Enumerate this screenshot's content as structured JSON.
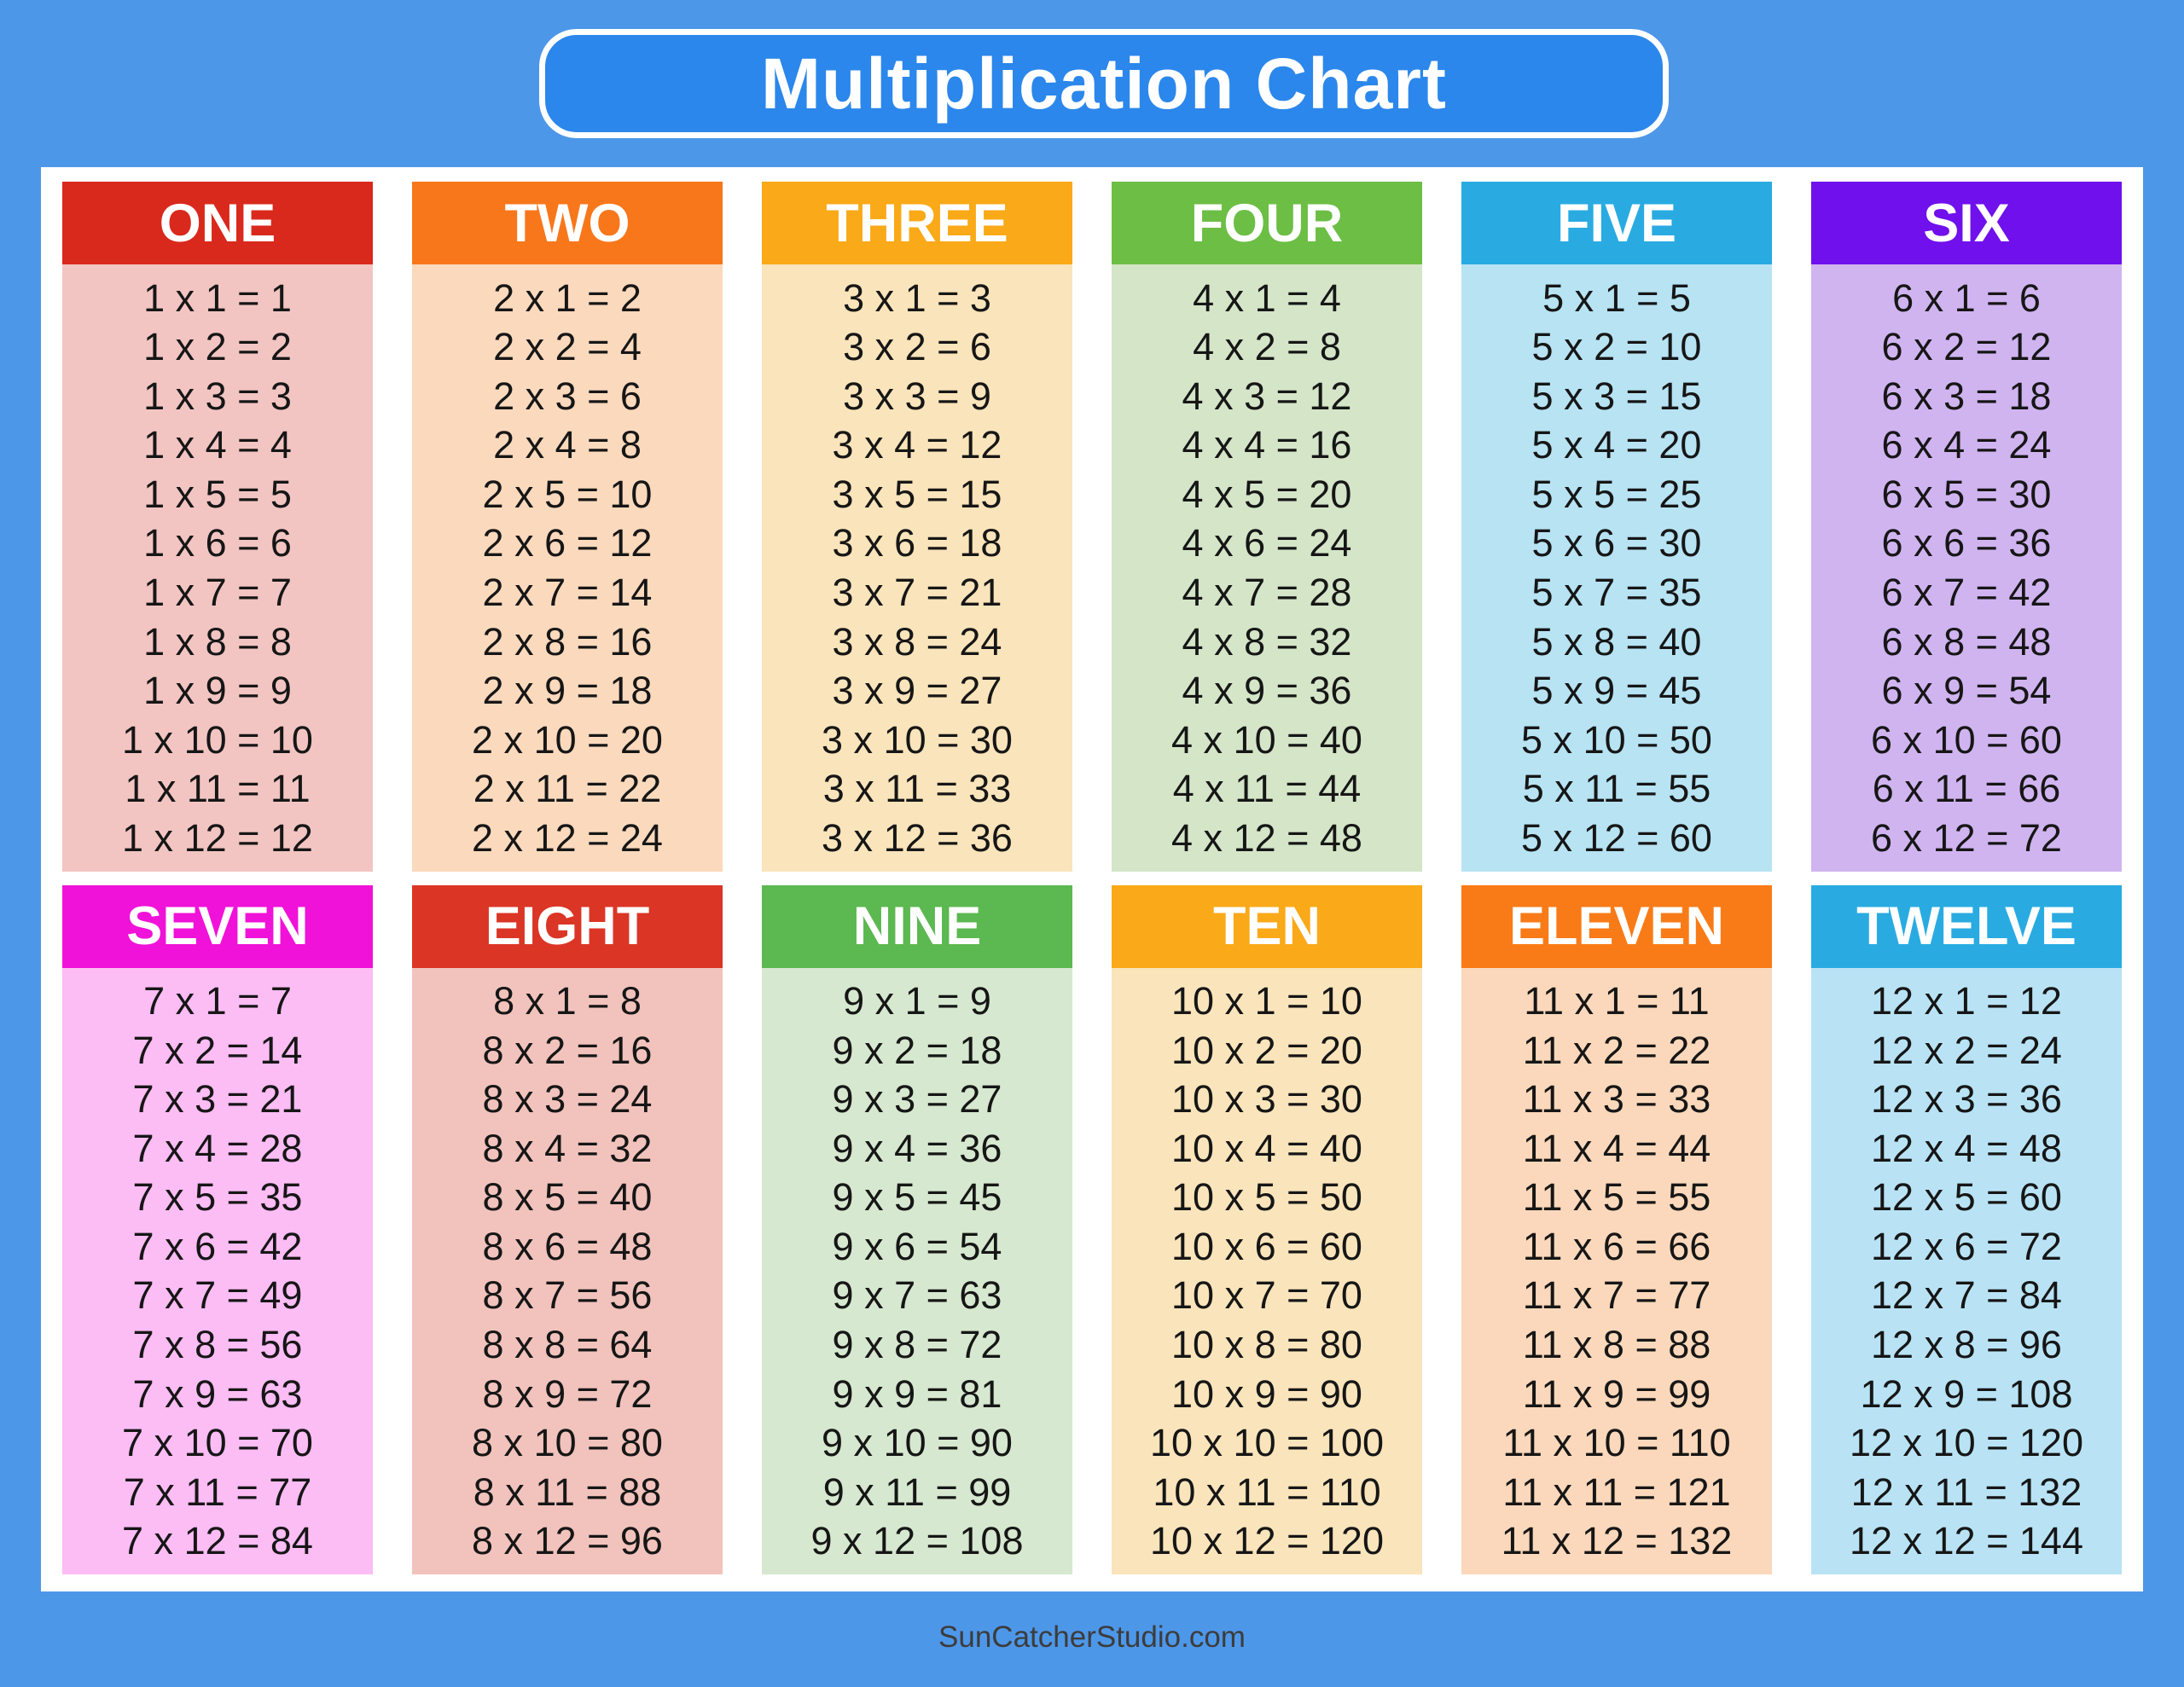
{
  "title": "Multiplication Chart",
  "footer": "SunCatcherStudio.com",
  "colors": {
    "page_bg": "#4D97E9",
    "title_pill_bg": "#2B87EB",
    "title_text": "#FFFFFF",
    "panel_bg": "#FFFFFF",
    "header_text": "#FFFFFF",
    "fact_text": "#161616",
    "footer_text": "#3C3C3C"
  },
  "chart_data": {
    "type": "table",
    "title": "Multiplication Chart",
    "layout": "2 rows x 6 columns of times tables, multipliers 1-12",
    "columns": [
      {
        "label": "ONE",
        "multiplier": 1,
        "header_color": "#D9291C",
        "body_color": "#F2C5C2",
        "products": [
          1,
          2,
          3,
          4,
          5,
          6,
          7,
          8,
          9,
          10,
          11,
          12
        ],
        "facts": [
          "1 x 1 = 1",
          "1 x 2 = 2",
          "1 x 3 = 3",
          "1 x 4 = 4",
          "1 x 5 = 5",
          "1 x 6 = 6",
          "1 x 7 = 7",
          "1 x 8 = 8",
          "1 x 9 = 9",
          "1 x 10 = 10",
          "1 x 11 = 11",
          "1 x 12 = 12"
        ]
      },
      {
        "label": "TWO",
        "multiplier": 2,
        "header_color": "#F8771B",
        "body_color": "#FBD9BD",
        "products": [
          2,
          4,
          6,
          8,
          10,
          12,
          14,
          16,
          18,
          20,
          22,
          24
        ],
        "facts": [
          "2 x 1 = 2",
          "2 x 2 = 4",
          "2 x 3 = 6",
          "2 x 4 = 8",
          "2 x 5 = 10",
          "2 x 6 = 12",
          "2 x 7 = 14",
          "2 x 8 = 16",
          "2 x 9 = 18",
          "2 x 10 = 20",
          "2 x 11 = 22",
          "2 x 12 = 24"
        ]
      },
      {
        "label": "THREE",
        "multiplier": 3,
        "header_color": "#FAA918",
        "body_color": "#FAE4BB",
        "products": [
          3,
          6,
          9,
          12,
          15,
          18,
          21,
          24,
          27,
          30,
          33,
          36
        ],
        "facts": [
          "3 x 1 = 3",
          "3 x 2 = 6",
          "3 x 3 = 9",
          "3 x 4 = 12",
          "3 x 5 = 15",
          "3 x 6 = 18",
          "3 x 7 = 21",
          "3 x 8 = 24",
          "3 x 9 = 27",
          "3 x 10 = 30",
          "3 x 11 = 33",
          "3 x 12 = 36"
        ]
      },
      {
        "label": "FOUR",
        "multiplier": 4,
        "header_color": "#6CBE45",
        "body_color": "#D4E5C8",
        "products": [
          4,
          8,
          12,
          16,
          20,
          24,
          28,
          32,
          36,
          40,
          44,
          48
        ],
        "facts": [
          "4 x 1 = 4",
          "4 x 2 = 8",
          "4 x 3 = 12",
          "4 x 4 = 16",
          "4 x 5 = 20",
          "4 x 6 = 24",
          "4 x 7 = 28",
          "4 x 8 = 32",
          "4 x 9 = 36",
          "4 x 10 = 40",
          "4 x 11 = 44",
          "4 x 12 = 48"
        ]
      },
      {
        "label": "FIVE",
        "multiplier": 5,
        "header_color": "#29ABE2",
        "body_color": "#B7E3F3",
        "products": [
          5,
          10,
          15,
          20,
          25,
          30,
          35,
          40,
          45,
          50,
          55,
          60
        ],
        "facts": [
          "5 x 1 = 5",
          "5 x 2 = 10",
          "5 x 3 = 15",
          "5 x 4 = 20",
          "5 x 5 = 25",
          "5 x 6 = 30",
          "5 x 7 = 35",
          "5 x 8 = 40",
          "5 x 9 = 45",
          "5 x 10 = 50",
          "5 x 11 = 55",
          "5 x 12 = 60"
        ]
      },
      {
        "label": "SIX",
        "multiplier": 6,
        "header_color": "#7010EC",
        "body_color": "#D0B4F0",
        "products": [
          6,
          12,
          18,
          24,
          30,
          36,
          42,
          48,
          54,
          60,
          66,
          72
        ],
        "facts": [
          "6 x 1 = 6",
          "6 x 2 = 12",
          "6 x 3 = 18",
          "6 x 4 = 24",
          "6 x 5 = 30",
          "6 x 6 = 36",
          "6 x 7 = 42",
          "6 x 8 = 48",
          "6 x 9 = 54",
          "6 x 10 = 60",
          "6 x 11 = 66",
          "6 x 12 = 72"
        ]
      },
      {
        "label": "SEVEN",
        "multiplier": 7,
        "header_color": "#F012D8",
        "body_color": "#FCBCF4",
        "products": [
          7,
          14,
          21,
          28,
          35,
          42,
          49,
          56,
          63,
          70,
          77,
          84
        ],
        "facts": [
          "7 x 1 = 7",
          "7 x 2 = 14",
          "7 x 3 = 21",
          "7 x 4 = 28",
          "7 x 5 = 35",
          "7 x 6 = 42",
          "7 x 7 = 49",
          "7 x 8 = 56",
          "7 x 9 = 63",
          "7 x 10 = 70",
          "7 x 11 = 77",
          "7 x 12 = 84"
        ]
      },
      {
        "label": "EIGHT",
        "multiplier": 8,
        "header_color": "#DB3526",
        "body_color": "#F1C3BC",
        "products": [
          8,
          16,
          24,
          32,
          40,
          48,
          56,
          64,
          72,
          80,
          88,
          96
        ],
        "facts": [
          "8 x 1 = 8",
          "8 x 2 = 16",
          "8 x 3 = 24",
          "8 x 4 = 32",
          "8 x 5 = 40",
          "8 x 6 = 48",
          "8 x 7 = 56",
          "8 x 8 = 64",
          "8 x 9 = 72",
          "8 x 10 = 80",
          "8 x 11 = 88",
          "8 x 12 = 96"
        ]
      },
      {
        "label": "NINE",
        "multiplier": 9,
        "header_color": "#5CB850",
        "body_color": "#D6E8CF",
        "products": [
          9,
          18,
          27,
          36,
          45,
          54,
          63,
          72,
          81,
          90,
          99,
          108
        ],
        "facts": [
          "9 x 1 = 9",
          "9 x 2 = 18",
          "9 x 3 = 27",
          "9 x 4 = 36",
          "9 x 5 = 45",
          "9 x 6 = 54",
          "9 x 7 = 63",
          "9 x 8 = 72",
          "9 x 9 = 81",
          "9 x 10 = 90",
          "9 x 11 = 99",
          "9 x 12 = 108"
        ]
      },
      {
        "label": "TEN",
        "multiplier": 10,
        "header_color": "#FAA918",
        "body_color": "#FAE4BB",
        "products": [
          10,
          20,
          30,
          40,
          50,
          60,
          70,
          80,
          90,
          100,
          110,
          120
        ],
        "facts": [
          "10 x 1 = 10",
          "10 x 2 = 20",
          "10 x 3 = 30",
          "10 x 4 = 40",
          "10 x 5 = 50",
          "10 x 6 = 60",
          "10 x 7 = 70",
          "10 x 8 = 80",
          "10 x 9 = 90",
          "10 x 10 = 100",
          "10 x 11 = 110",
          "10 x 12 = 120"
        ]
      },
      {
        "label": "ELEVEN",
        "multiplier": 11,
        "header_color": "#F97B17",
        "body_color": "#FBD8BB",
        "products": [
          11,
          22,
          33,
          44,
          55,
          66,
          77,
          88,
          99,
          110,
          121,
          132
        ],
        "facts": [
          "11 x 1 = 11",
          "11 x 2 = 22",
          "11 x 3 = 33",
          "11 x 4 = 44",
          "11 x 5 = 55",
          "11 x 6 = 66",
          "11 x 7 = 77",
          "11 x 8 = 88",
          "11 x 9 = 99",
          "11 x 10 = 110",
          "11 x 11 = 121",
          "11 x 12 = 132"
        ]
      },
      {
        "label": "TWELVE",
        "multiplier": 12,
        "header_color": "#29ABE2",
        "body_color": "#B9E3F5",
        "products": [
          12,
          24,
          36,
          48,
          60,
          72,
          84,
          96,
          108,
          120,
          132,
          144
        ],
        "facts": [
          "12 x 1 = 12",
          "12 x 2 = 24",
          "12 x 3 = 36",
          "12 x 4 = 48",
          "12 x 5 = 60",
          "12 x 6 = 72",
          "12 x 7 = 84",
          "12 x 8 = 96",
          "12 x 9 = 108",
          "12 x 10 = 120",
          "12 x 11 = 132",
          "12 x 12 = 144"
        ]
      }
    ]
  }
}
